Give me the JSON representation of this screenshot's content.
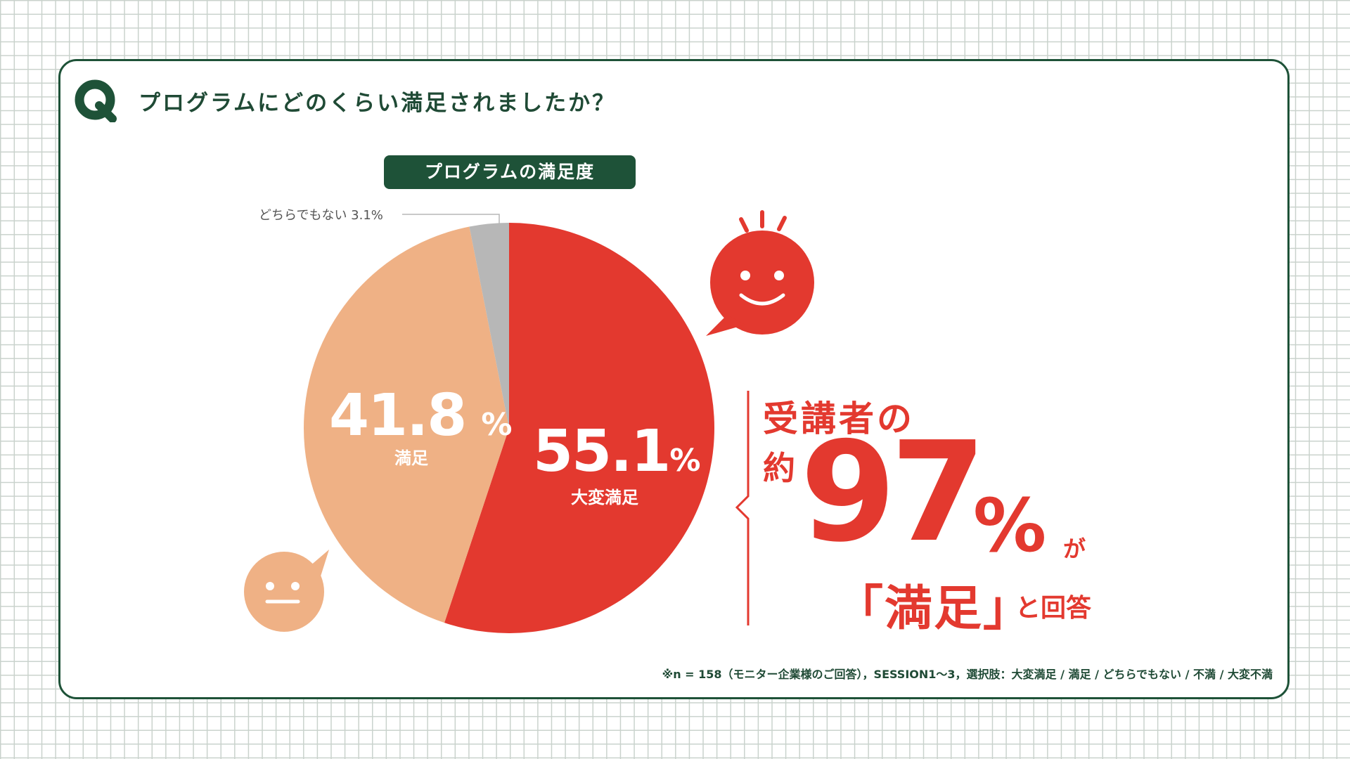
{
  "question": {
    "mark": "Q",
    "title": "プログラムにどのくらい満足されましたか？"
  },
  "chart_data": {
    "type": "pie",
    "title": "プログラムの満足度",
    "slices": [
      {
        "label": "大変満足",
        "value": 55.1,
        "color": "#e3392f"
      },
      {
        "label": "満足",
        "value": 41.8,
        "color": "#efb185"
      },
      {
        "label": "どちらでもない",
        "value": 3.1,
        "color": "#b7b7b7"
      }
    ],
    "start_angle_deg": 0,
    "direction": "clockwise"
  },
  "labels": {
    "very_value": "55.1",
    "very_pct": "%",
    "very_name": "大変満足",
    "sat_value": "41.8",
    "sat_pct": "%",
    "sat_name": "満足",
    "other": "どちらでもない 3.1%"
  },
  "highlight": {
    "line1": "受講者の",
    "prefix": "約",
    "number": "97",
    "percent": "%",
    "suffix": "が",
    "quote": "「満足」",
    "tail": "と回答"
  },
  "footnote": "※n = 158（モニター企業様のご回答），SESSION1～3，選択肢：大変満足 / 満足 / どちらでもない / 不満 / 大変不満",
  "icons": [
    "smiley-happy-red-icon",
    "smiley-content-peach-icon"
  ]
}
